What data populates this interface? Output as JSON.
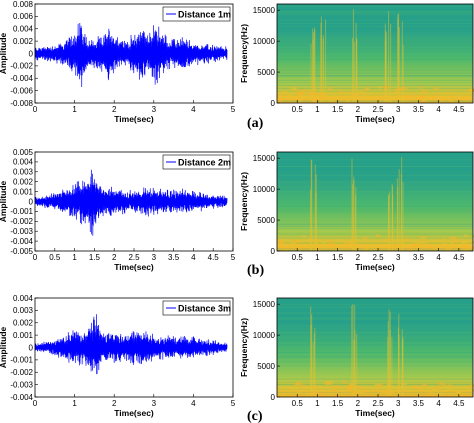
{
  "chart_data": [
    {
      "type": "line",
      "ylabel": "Amplitude",
      "xlabel": "Time(sec)",
      "xlim": [
        0,
        5
      ],
      "ylim": [
        -0.008,
        0.008
      ],
      "xticks": [
        "0",
        "1",
        "2",
        "3",
        "4",
        "5"
      ],
      "yticks": [
        "-0.008",
        "-0.006",
        "-0.004",
        "-0.002",
        "0",
        "0.002",
        "0.004",
        "0.006",
        "0.008"
      ],
      "series": [
        {
          "name": "Distance 1m",
          "color": "#0000ff"
        }
      ],
      "signal_envelope": {
        "duration_sec": 4.85,
        "points": [
          [
            0,
            0.0012
          ],
          [
            0.3,
            0.0014
          ],
          [
            0.6,
            0.0018
          ],
          [
            0.85,
            0.0028
          ],
          [
            1.0,
            0.0045
          ],
          [
            1.15,
            0.0065
          ],
          [
            1.3,
            0.0032
          ],
          [
            1.5,
            0.0025
          ],
          [
            1.75,
            0.0035
          ],
          [
            1.9,
            0.0055
          ],
          [
            2.05,
            0.0035
          ],
          [
            2.3,
            0.0022
          ],
          [
            2.55,
            0.004
          ],
          [
            2.7,
            0.0055
          ],
          [
            2.9,
            0.0035
          ],
          [
            3.05,
            0.0062
          ],
          [
            3.2,
            0.004
          ],
          [
            3.45,
            0.0025
          ],
          [
            3.7,
            0.0032
          ],
          [
            3.95,
            0.0022
          ],
          [
            4.3,
            0.0018
          ],
          [
            4.85,
            0.0012
          ]
        ]
      }
    },
    {
      "type": "heatmap",
      "ylabel": "Frequency(Hz)",
      "xlabel": "Time(sec)",
      "xlim": [
        0,
        4.85
      ],
      "ylim": [
        0,
        16000
      ],
      "xticks": [
        "0.5",
        "1",
        "1.5",
        "2",
        "2.5",
        "3",
        "3.5",
        "4",
        "4.5"
      ],
      "yticks": [
        "0",
        "5000",
        "10000",
        "15000"
      ],
      "colormap": [
        "#2c7fb8",
        "#27a08a",
        "#4db86c",
        "#a3c94e",
        "#e8c02e",
        "#f7b52a"
      ],
      "bursts_sec": [
        0.9,
        1.15,
        1.9,
        2.75,
        3.05
      ]
    },
    {
      "type": "line",
      "ylabel": "Amplitude",
      "xlabel": "Time(sec)",
      "xlim": [
        0,
        5
      ],
      "ylim": [
        -0.005,
        0.005
      ],
      "xticks": [
        "0",
        "0.5",
        "1",
        "1.5",
        "2",
        "2.5",
        "3",
        "3.5",
        "4",
        "4.5",
        "5"
      ],
      "yticks": [
        "-0.005",
        "-0.004",
        "-0.003",
        "-0.002",
        "-0.001",
        "0",
        "0.001",
        "0.002",
        "0.003",
        "0.004",
        "0.005"
      ],
      "series": [
        {
          "name": "Distance 2m",
          "color": "#0000ff"
        }
      ],
      "signal_envelope": {
        "duration_sec": 4.85,
        "points": [
          [
            0,
            0.0005
          ],
          [
            0.4,
            0.0008
          ],
          [
            0.8,
            0.0015
          ],
          [
            1.1,
            0.0022
          ],
          [
            1.3,
            0.003
          ],
          [
            1.45,
            0.0038
          ],
          [
            1.6,
            0.002
          ],
          [
            1.85,
            0.0018
          ],
          [
            2.1,
            0.0015
          ],
          [
            2.5,
            0.0012
          ],
          [
            2.75,
            0.0018
          ],
          [
            3.0,
            0.0015
          ],
          [
            3.3,
            0.0013
          ],
          [
            3.7,
            0.0014
          ],
          [
            4.0,
            0.0012
          ],
          [
            4.4,
            0.0009
          ],
          [
            4.85,
            0.0006
          ]
        ]
      }
    },
    {
      "type": "heatmap",
      "ylabel": "Frequency(Hz)",
      "xlabel": "Time(sec)",
      "xlim": [
        0,
        4.85
      ],
      "ylim": [
        0,
        16000
      ],
      "xticks": [
        "0.5",
        "1",
        "1.5",
        "2",
        "2.5",
        "3",
        "3.5",
        "4",
        "4.5"
      ],
      "yticks": [
        "0",
        "5000",
        "10000",
        "15000"
      ],
      "colormap": [
        "#2c7fb8",
        "#27a08a",
        "#4db86c",
        "#a3c94e",
        "#e8c02e",
        "#f7b52a"
      ],
      "bursts_sec": [
        0.9,
        1.9,
        2.8,
        3.05
      ]
    },
    {
      "type": "line",
      "ylabel": "Amplitude",
      "xlabel": "Time(sec)",
      "xlim": [
        0,
        5
      ],
      "ylim": [
        -0.004,
        0.004
      ],
      "xticks": [
        "0",
        "1",
        "2",
        "3",
        "4",
        "5"
      ],
      "yticks": [
        "-0.004",
        "-0.003",
        "-0.002",
        "-0.001",
        "0",
        "0.001",
        "0.002",
        "0.003",
        "0.004"
      ],
      "series": [
        {
          "name": "Distance 3m",
          "color": "#0000ff"
        }
      ],
      "signal_envelope": {
        "duration_sec": 4.85,
        "points": [
          [
            0,
            0.0004
          ],
          [
            0.4,
            0.0006
          ],
          [
            0.8,
            0.0012
          ],
          [
            1.0,
            0.0018
          ],
          [
            1.2,
            0.0014
          ],
          [
            1.4,
            0.0022
          ],
          [
            1.55,
            0.0032
          ],
          [
            1.7,
            0.0014
          ],
          [
            2.0,
            0.0015
          ],
          [
            2.3,
            0.0012
          ],
          [
            2.6,
            0.0018
          ],
          [
            2.85,
            0.0014
          ],
          [
            3.05,
            0.0012
          ],
          [
            3.4,
            0.0011
          ],
          [
            3.7,
            0.001
          ],
          [
            4.1,
            0.0009
          ],
          [
            4.5,
            0.0007
          ],
          [
            4.85,
            0.0004
          ]
        ]
      }
    },
    {
      "type": "heatmap",
      "ylabel": "Frequency(Hz)",
      "xlabel": "Time(sec)",
      "xlim": [
        0,
        4.85
      ],
      "ylim": [
        0,
        16000
      ],
      "xticks": [
        "0.5",
        "1",
        "1.5",
        "2",
        "2.5",
        "3",
        "3.5",
        "4",
        "4.5"
      ],
      "yticks": [
        "0",
        "5000",
        "10000",
        "15000"
      ],
      "colormap": [
        "#2c7fb8",
        "#27a08a",
        "#4db86c",
        "#a3c94e",
        "#e8c02e",
        "#f7b52a"
      ],
      "bursts_sec": [
        0.9,
        1.9,
        2.8,
        3.05
      ]
    }
  ],
  "panel_labels": [
    "(a)",
    "(b)",
    "(c)"
  ]
}
